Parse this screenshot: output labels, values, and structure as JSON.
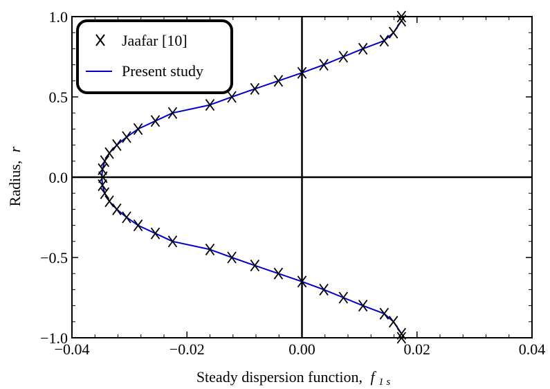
{
  "chart_data": {
    "type": "line",
    "xlabel": "Steady dispersion function,",
    "xlabel_symbol": "f",
    "xlabel_subscript": "1 s",
    "ylabel": "Radius,",
    "ylabel_symbol": "r",
    "xlim": [
      -0.04,
      0.04
    ],
    "ylim": [
      -1.0,
      1.0
    ],
    "x_ticks": [
      -0.04,
      -0.02,
      0.0,
      0.02,
      0.04
    ],
    "x_tick_labels": [
      "−0.04",
      "−0.02",
      "0.00",
      "0.02",
      "0.04"
    ],
    "y_ticks": [
      -1.0,
      -0.5,
      0.0,
      0.5,
      1.0
    ],
    "y_tick_labels": [
      "−1.0",
      "−0.5",
      "0.0",
      "0.5",
      "1.0"
    ],
    "legend_position": "top-left",
    "series": [
      {
        "name": "Jaafar [10]",
        "style": "markers",
        "marker": "x",
        "color": "#000000",
        "points": [
          {
            "x": 0.0173,
            "y": 1.0
          },
          {
            "x": 0.0173,
            "y": 0.975
          },
          {
            "x": 0.0159,
            "y": 0.9
          },
          {
            "x": 0.0143,
            "y": 0.85
          },
          {
            "x": 0.0106,
            "y": 0.8
          },
          {
            "x": 0.0072,
            "y": 0.75
          },
          {
            "x": 0.0038,
            "y": 0.7
          },
          {
            "x": 0.0,
            "y": 0.65
          },
          {
            "x": -0.0041,
            "y": 0.6
          },
          {
            "x": -0.0082,
            "y": 0.55
          },
          {
            "x": -0.0122,
            "y": 0.5
          },
          {
            "x": -0.016,
            "y": 0.45
          },
          {
            "x": -0.0225,
            "y": 0.4
          },
          {
            "x": -0.0255,
            "y": 0.35
          },
          {
            "x": -0.0285,
            "y": 0.3
          },
          {
            "x": -0.0305,
            "y": 0.25
          },
          {
            "x": -0.0322,
            "y": 0.2
          },
          {
            "x": -0.0335,
            "y": 0.15
          },
          {
            "x": -0.0343,
            "y": 0.1
          },
          {
            "x": -0.0347,
            "y": 0.05
          },
          {
            "x": -0.0346,
            "y": 0.0
          },
          {
            "x": -0.0347,
            "y": -0.05
          },
          {
            "x": -0.0343,
            "y": -0.1
          },
          {
            "x": -0.0335,
            "y": -0.15
          },
          {
            "x": -0.0322,
            "y": -0.2
          },
          {
            "x": -0.0305,
            "y": -0.25
          },
          {
            "x": -0.0285,
            "y": -0.3
          },
          {
            "x": -0.0255,
            "y": -0.35
          },
          {
            "x": -0.0225,
            "y": -0.4
          },
          {
            "x": -0.016,
            "y": -0.45
          },
          {
            "x": -0.0122,
            "y": -0.5
          },
          {
            "x": -0.0082,
            "y": -0.55
          },
          {
            "x": -0.0041,
            "y": -0.6
          },
          {
            "x": 0.0,
            "y": -0.65
          },
          {
            "x": 0.0038,
            "y": -0.7
          },
          {
            "x": 0.0072,
            "y": -0.75
          },
          {
            "x": 0.0106,
            "y": -0.8
          },
          {
            "x": 0.0143,
            "y": -0.85
          },
          {
            "x": 0.0159,
            "y": -0.9
          },
          {
            "x": 0.0173,
            "y": -0.975
          },
          {
            "x": 0.0173,
            "y": -1.0
          }
        ]
      },
      {
        "name": "Present study",
        "style": "line",
        "color": "#0000cc",
        "points": [
          {
            "x": 0.0178,
            "y": 1.0
          },
          {
            "x": 0.0159,
            "y": 0.9
          },
          {
            "x": 0.0143,
            "y": 0.85
          },
          {
            "x": 0.0106,
            "y": 0.8
          },
          {
            "x": 0.0072,
            "y": 0.75
          },
          {
            "x": 0.0038,
            "y": 0.7
          },
          {
            "x": 0.0,
            "y": 0.65
          },
          {
            "x": -0.0041,
            "y": 0.6
          },
          {
            "x": -0.0082,
            "y": 0.55
          },
          {
            "x": -0.0122,
            "y": 0.5
          },
          {
            "x": -0.016,
            "y": 0.45
          },
          {
            "x": -0.0225,
            "y": 0.4
          },
          {
            "x": -0.0255,
            "y": 0.35
          },
          {
            "x": -0.0285,
            "y": 0.3
          },
          {
            "x": -0.0305,
            "y": 0.25
          },
          {
            "x": -0.0322,
            "y": 0.2
          },
          {
            "x": -0.0335,
            "y": 0.15
          },
          {
            "x": -0.0343,
            "y": 0.1
          },
          {
            "x": -0.0347,
            "y": 0.05
          },
          {
            "x": -0.0348,
            "y": 0.0
          },
          {
            "x": -0.0347,
            "y": -0.05
          },
          {
            "x": -0.0343,
            "y": -0.1
          },
          {
            "x": -0.0335,
            "y": -0.15
          },
          {
            "x": -0.0322,
            "y": -0.2
          },
          {
            "x": -0.0305,
            "y": -0.25
          },
          {
            "x": -0.0285,
            "y": -0.3
          },
          {
            "x": -0.0255,
            "y": -0.35
          },
          {
            "x": -0.0225,
            "y": -0.4
          },
          {
            "x": -0.016,
            "y": -0.45
          },
          {
            "x": -0.0122,
            "y": -0.5
          },
          {
            "x": -0.0082,
            "y": -0.55
          },
          {
            "x": -0.0041,
            "y": -0.6
          },
          {
            "x": 0.0,
            "y": -0.65
          },
          {
            "x": 0.0038,
            "y": -0.7
          },
          {
            "x": 0.0072,
            "y": -0.75
          },
          {
            "x": 0.0106,
            "y": -0.8
          },
          {
            "x": 0.0143,
            "y": -0.85
          },
          {
            "x": 0.0159,
            "y": -0.9
          },
          {
            "x": 0.0178,
            "y": -1.0
          }
        ]
      }
    ]
  }
}
